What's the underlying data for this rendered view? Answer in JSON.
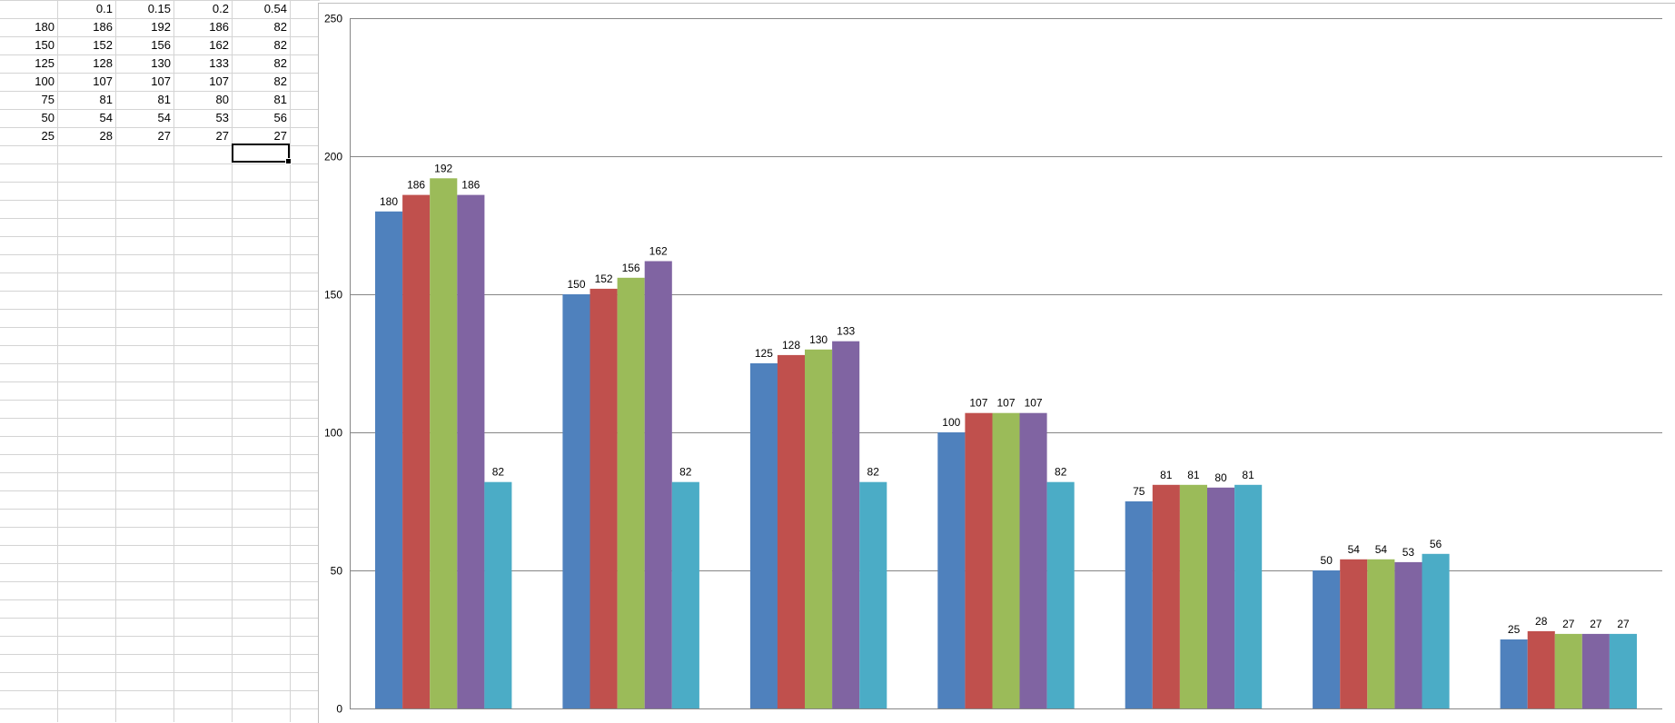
{
  "sheet": {
    "rows": [
      [
        "",
        "0.1",
        "0.15",
        "0.2",
        "0.54"
      ],
      [
        "180",
        "186",
        "192",
        "186",
        "82"
      ],
      [
        "150",
        "152",
        "156",
        "162",
        "82"
      ],
      [
        "125",
        "128",
        "130",
        "133",
        "82"
      ],
      [
        "100",
        "107",
        "107",
        "107",
        "82"
      ],
      [
        "75",
        "81",
        "81",
        "80",
        "81"
      ],
      [
        "50",
        "54",
        "54",
        "53",
        "56"
      ],
      [
        "25",
        "28",
        "27",
        "27",
        "27"
      ]
    ]
  },
  "chart_data": {
    "type": "bar",
    "title": "",
    "xlabel": "",
    "ylabel": "",
    "ylim": [
      0,
      250
    ],
    "yticks": [
      0,
      50,
      100,
      150,
      200,
      250
    ],
    "grid": true,
    "legend": "none",
    "categories": [
      "",
      "",
      "",
      "",
      "",
      "",
      ""
    ],
    "series": [
      {
        "values": [
          180,
          150,
          125,
          100,
          75,
          50,
          25
        ],
        "color": "#4F81BD"
      },
      {
        "values": [
          186,
          152,
          128,
          107,
          81,
          54,
          28
        ],
        "color": "#C0504D"
      },
      {
        "values": [
          192,
          156,
          130,
          107,
          81,
          54,
          27
        ],
        "color": "#9BBB59"
      },
      {
        "values": [
          186,
          162,
          133,
          107,
          80,
          53,
          27
        ],
        "color": "#8064A2"
      },
      {
        "values": [
          82,
          82,
          82,
          82,
          81,
          56,
          27
        ],
        "color": "#4BACC6"
      }
    ]
  }
}
